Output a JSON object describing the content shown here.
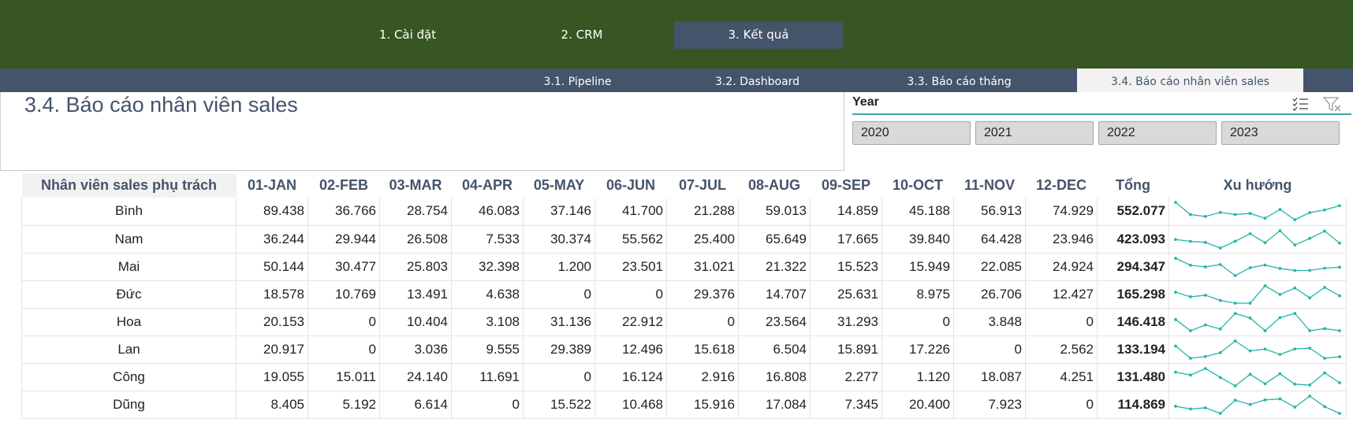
{
  "top_nav": [
    "1. Cài đặt",
    "2. CRM",
    "3. Kết quả"
  ],
  "sub_nav": [
    "3.1. Pipeline",
    "3.2. Dashboard",
    "3.3. Báo cáo tháng",
    "3.4. Báo cáo nhân viên sales"
  ],
  "page_title": "3.4. Báo cáo nhân viên sales",
  "slicer": {
    "title": "Year",
    "icons": [
      "multi-select-icon",
      "clear-filter-icon"
    ],
    "options": [
      "2020",
      "2021",
      "2022",
      "2023"
    ]
  },
  "table": {
    "headers": [
      "Nhân viên sales phụ trách",
      "01-JAN",
      "02-FEB",
      "03-MAR",
      "04-APR",
      "05-MAY",
      "06-JUN",
      "07-JUL",
      "08-AUG",
      "09-SEP",
      "10-OCT",
      "11-NOV",
      "12-DEC",
      "Tổng",
      "Xu hướng"
    ],
    "rows": [
      {
        "name": "Bình",
        "values": [
          "89.438",
          "36.766",
          "28.754",
          "46.083",
          "37.146",
          "41.700",
          "21.288",
          "59.013",
          "14.859",
          "45.188",
          "56.913",
          "74.929"
        ],
        "total": "552.077",
        "trend": [
          89438,
          36766,
          28754,
          46083,
          37146,
          41700,
          21288,
          59013,
          14859,
          45188,
          56913,
          74929
        ]
      },
      {
        "name": "Nam",
        "values": [
          "36.244",
          "29.944",
          "26.508",
          "7.533",
          "30.374",
          "55.562",
          "25.400",
          "65.649",
          "17.665",
          "39.840",
          "64.428",
          "23.946"
        ],
        "total": "423.093",
        "trend": [
          36244,
          29944,
          26508,
          7533,
          30374,
          55562,
          25400,
          65649,
          17665,
          39840,
          64428,
          23946
        ]
      },
      {
        "name": "Mai",
        "values": [
          "50.144",
          "30.477",
          "25.803",
          "32.398",
          "1.200",
          "23.501",
          "31.021",
          "21.322",
          "15.523",
          "15.949",
          "22.085",
          "24.924"
        ],
        "total": "294.347",
        "trend": [
          50144,
          30477,
          25803,
          32398,
          1200,
          23501,
          31021,
          21322,
          15523,
          15949,
          22085,
          24924
        ]
      },
      {
        "name": "Đức",
        "values": [
          "18.578",
          "10.769",
          "13.491",
          "4.638",
          "0",
          "0",
          "29.376",
          "14.707",
          "25.631",
          "8.975",
          "26.706",
          "12.427"
        ],
        "total": "165.298",
        "trend": [
          18578,
          10769,
          13491,
          4638,
          0,
          0,
          29376,
          14707,
          25631,
          8975,
          26706,
          12427
        ]
      },
      {
        "name": "Hoa",
        "values": [
          "20.153",
          "0",
          "10.404",
          "3.108",
          "31.136",
          "22.912",
          "0",
          "23.564",
          "31.293",
          "0",
          "3.848",
          "0"
        ],
        "total": "146.418",
        "trend": [
          20153,
          0,
          10404,
          3108,
          31136,
          22912,
          0,
          23564,
          31293,
          0,
          3848,
          0
        ]
      },
      {
        "name": "Lan",
        "values": [
          "20.917",
          "0",
          "3.036",
          "9.555",
          "29.389",
          "12.496",
          "15.618",
          "6.504",
          "15.891",
          "17.226",
          "0",
          "2.562"
        ],
        "total": "133.194",
        "trend": [
          20917,
          0,
          3036,
          9555,
          29389,
          12496,
          15618,
          6504,
          15891,
          17226,
          0,
          2562
        ]
      },
      {
        "name": "Công",
        "values": [
          "19.055",
          "15.011",
          "24.140",
          "11.691",
          "0",
          "16.124",
          "2.916",
          "16.808",
          "2.277",
          "1.120",
          "18.087",
          "4.251"
        ],
        "total": "131.480",
        "trend": [
          19055,
          15011,
          24140,
          11691,
          0,
          16124,
          2916,
          16808,
          2277,
          1120,
          18087,
          4251
        ]
      },
      {
        "name": "Dũng",
        "values": [
          "8.405",
          "5.192",
          "6.614",
          "0",
          "15.522",
          "10.468",
          "15.916",
          "17.084",
          "7.345",
          "20.400",
          "7.923",
          "0"
        ],
        "total": "114.869",
        "trend": [
          8405,
          5192,
          6614,
          0,
          15522,
          10468,
          15916,
          17084,
          7345,
          20400,
          7923,
          0
        ]
      }
    ]
  },
  "colors": {
    "nav_bg": "#375623",
    "subnav_bg": "#44546a",
    "active_tab": "#44546a",
    "header_text": "#44546a",
    "sparkline": "#26b5a8",
    "slicer_underline": "#3aa6a6"
  }
}
